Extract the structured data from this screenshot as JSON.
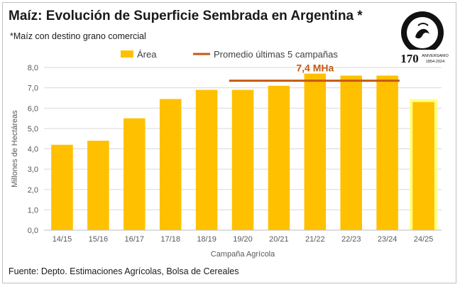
{
  "title": "Maíz: Evolución de Superficie Sembrada en Argentina *",
  "subtitle": "*Maíz con destino grano comercial",
  "source": "Fuente: Depto. Estimaciones Agrícolas, Bolsa de Cereales",
  "logo": {
    "name": "Bolsa de Cereales",
    "number": "170",
    "anniversary": "ANIVERSARIO",
    "years": "1854-2024"
  },
  "colors": {
    "bar": "#ffc000",
    "highlight": "#ffff66",
    "average_line": "#c55a11",
    "grid": "#d9d9d9"
  },
  "chart_data": {
    "type": "bar",
    "title": "Maíz: Evolución de Superficie Sembrada en Argentina *",
    "xlabel": "Campaña Agrícola",
    "ylabel": "Millones de Hectáreas",
    "ylim": [
      0,
      8
    ],
    "yticks": [
      "0,0",
      "1,0",
      "2,0",
      "3,0",
      "4,0",
      "5,0",
      "6,0",
      "7,0",
      "8,0"
    ],
    "grid": true,
    "legend_position": "top",
    "categories": [
      "14/15",
      "15/16",
      "16/17",
      "17/18",
      "18/19",
      "19/20",
      "20/21",
      "21/22",
      "22/23",
      "23/24",
      "24/25"
    ],
    "series": [
      {
        "name": "Área",
        "values": [
          4.2,
          4.4,
          5.5,
          6.45,
          6.9,
          6.9,
          7.1,
          7.7,
          7.6,
          7.6,
          6.3
        ],
        "highlighted_category": "24/25"
      }
    ],
    "reference_line": {
      "name": "Promedio últimas 5 campañas",
      "value": 7.35,
      "label": "7,4 MHa",
      "from_category": "19/20",
      "to_category": "23/24"
    }
  }
}
